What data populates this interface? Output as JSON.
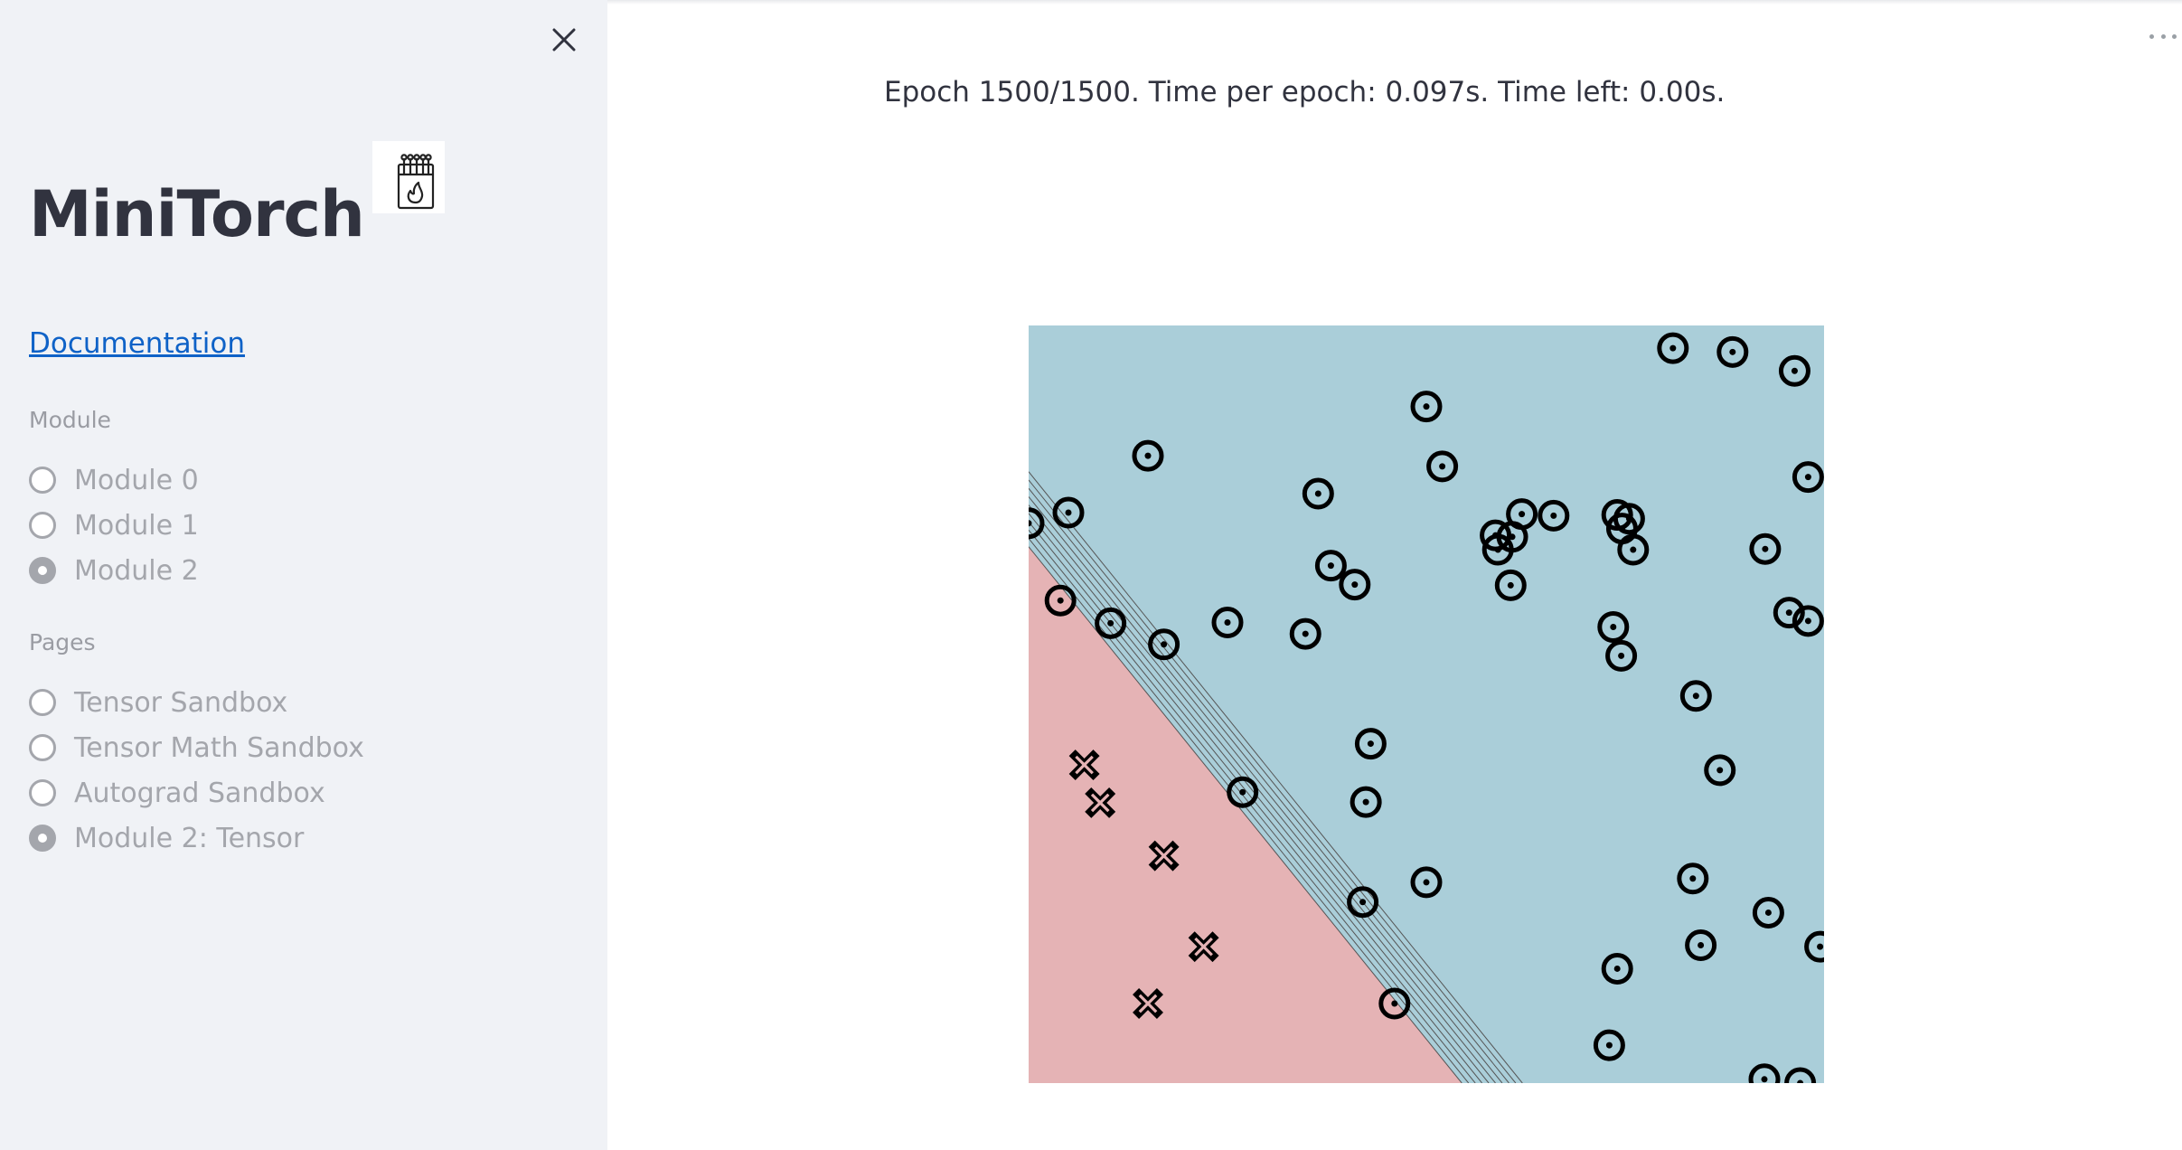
{
  "sidebar": {
    "title": "MiniTorch",
    "documentation_link": "Documentation",
    "module_group": {
      "label": "Module",
      "options": [
        {
          "label": "Module 0",
          "selected": false
        },
        {
          "label": "Module 1",
          "selected": false
        },
        {
          "label": "Module 2",
          "selected": true
        }
      ]
    },
    "pages_group": {
      "label": "Pages",
      "options": [
        {
          "label": "Tensor Sandbox",
          "selected": false
        },
        {
          "label": "Tensor Math Sandbox",
          "selected": false
        },
        {
          "label": "Autograd Sandbox",
          "selected": false
        },
        {
          "label": "Module 2: Tensor",
          "selected": true
        }
      ]
    },
    "icons": {
      "close": "close-icon",
      "logo": "matchbox-flame-icon"
    }
  },
  "main": {
    "status": "Epoch 1500/1500. Time per epoch: 0.097s. Time left: 0.00s.",
    "menu_icon": "more-options-icon"
  },
  "chart_data": {
    "type": "scatter",
    "xlim": [
      0,
      1
    ],
    "ylim": [
      0,
      1
    ],
    "colors": {
      "class0_region": "#e5b3b5",
      "class1_region": "#aaced9",
      "contour": "#555555"
    },
    "series": [
      {
        "marker": "x",
        "points": [
          [
            0.07,
            0.42
          ],
          [
            0.09,
            0.37
          ],
          [
            0.17,
            0.3
          ],
          [
            0.22,
            0.18
          ],
          [
            0.15,
            0.105
          ]
        ]
      },
      {
        "marker": "o",
        "points": [
          [
            0.81,
            0.97
          ],
          [
            0.885,
            0.965
          ],
          [
            0.963,
            0.94
          ],
          [
            0.5,
            0.893
          ],
          [
            0.15,
            0.828
          ],
          [
            0.52,
            0.814
          ],
          [
            0.98,
            0.8
          ],
          [
            0.364,
            0.778
          ],
          [
            0.05,
            0.753
          ],
          [
            0.0,
            0.739
          ],
          [
            0.587,
            0.723
          ],
          [
            0.735,
            0.602
          ],
          [
            0.755,
            0.745
          ],
          [
            0.62,
            0.751
          ],
          [
            0.66,
            0.749
          ],
          [
            0.74,
            0.75
          ],
          [
            0.59,
            0.704
          ],
          [
            0.746,
            0.732
          ],
          [
            0.76,
            0.704
          ],
          [
            0.38,
            0.683
          ],
          [
            0.41,
            0.658
          ],
          [
            0.606,
            0.657
          ],
          [
            0.926,
            0.705
          ],
          [
            0.608,
            0.721
          ],
          [
            0.04,
            0.637
          ],
          [
            0.103,
            0.607
          ],
          [
            0.17,
            0.579
          ],
          [
            0.25,
            0.608
          ],
          [
            0.348,
            0.593
          ],
          [
            0.956,
            0.621
          ],
          [
            0.98,
            0.61
          ],
          [
            0.745,
            0.564
          ],
          [
            0.839,
            0.511
          ],
          [
            0.43,
            0.448
          ],
          [
            0.269,
            0.384
          ],
          [
            0.424,
            0.371
          ],
          [
            0.869,
            0.413
          ],
          [
            0.5,
            0.265
          ],
          [
            0.42,
            0.239
          ],
          [
            0.835,
            0.27
          ],
          [
            0.845,
            0.182
          ],
          [
            0.93,
            0.225
          ],
          [
            0.995,
            0.18
          ],
          [
            0.74,
            0.151
          ],
          [
            0.46,
            0.105
          ],
          [
            0.73,
            0.05
          ],
          [
            0.925,
            0.005
          ],
          [
            0.97,
            0.0
          ]
        ]
      }
    ]
  }
}
